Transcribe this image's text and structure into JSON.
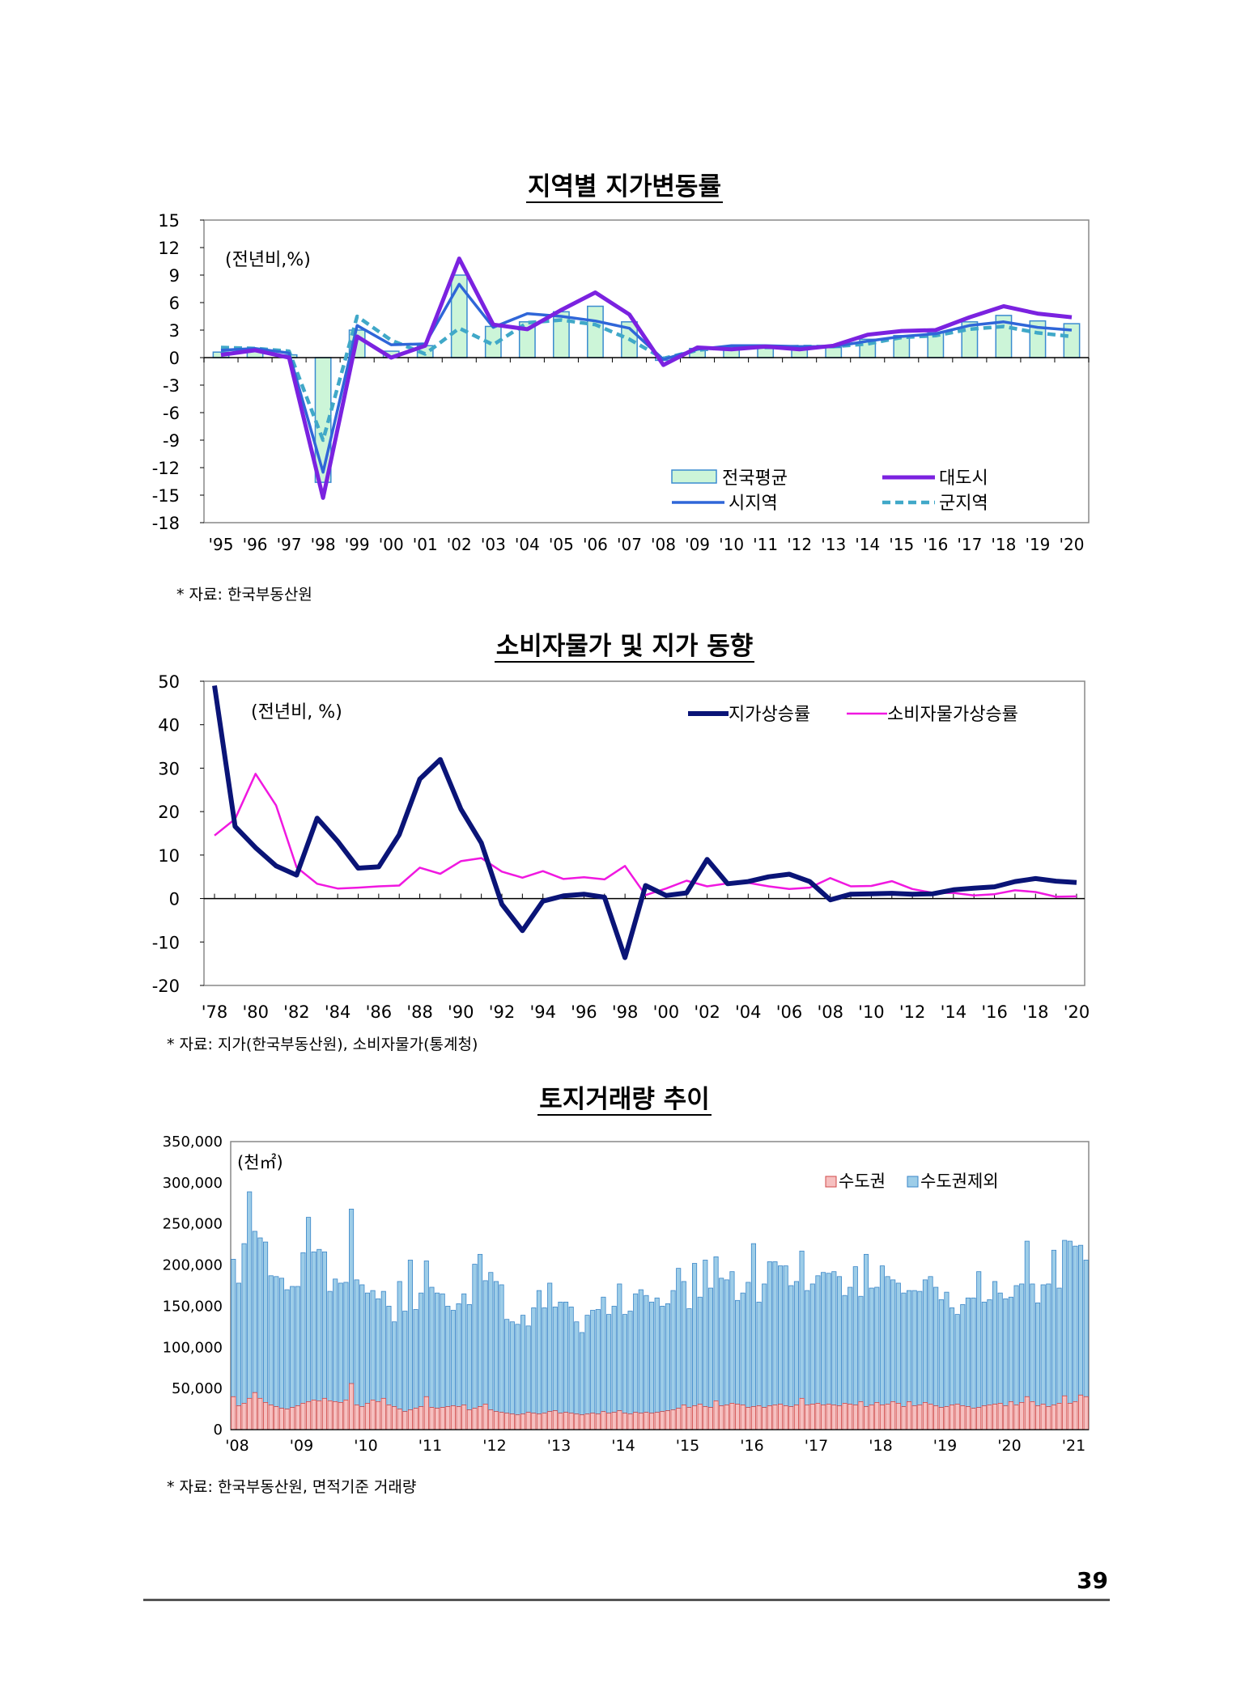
{
  "page_number": "39",
  "colors": {
    "bar_fill": "#ccf5d8",
    "bar_stroke": "#3a8bd0",
    "metro": "#7b22e0",
    "city": "#2f66d8",
    "county": "#40a8c8",
    "land": "#0a1477",
    "cpi": "#f018e0",
    "metro_area": "#f6c0c0",
    "non_metro": "#9dcde8"
  },
  "charts": [
    {
      "id": "regional",
      "title": "지역별 지가변동률",
      "unit_note": "(전년비,%)",
      "source": "* 자료: 한국부동산원",
      "legend": {
        "national": "전국평균",
        "metro": "대도시",
        "city": "시지역",
        "county": "군지역"
      }
    },
    {
      "id": "cpi",
      "title": "소비자물가 및 지가 동향",
      "unit_note": "(전년비, %)",
      "source": "* 자료: 지가(한국부동산원), 소비자물가(통계청)",
      "legend": {
        "land": "지가상승률",
        "cpi": "소비자물가상승률"
      }
    },
    {
      "id": "volume",
      "title": "토지거래량 추이",
      "unit_note": "(천㎡)",
      "source": "* 자료: 한국부동산원, 면적기준 거래량",
      "legend": {
        "metro_area": "수도권",
        "non_metro": "수도권제외"
      }
    }
  ],
  "chart_data": [
    {
      "type": "bar+line",
      "title": "지역별 지가변동률",
      "ylim": [
        -18,
        15
      ],
      "yticks": [
        15,
        12,
        9,
        6,
        3,
        0,
        -3,
        -6,
        -9,
        -12,
        -15,
        -18
      ],
      "categories": [
        "'95",
        "'96",
        "'97",
        "'98",
        "'99",
        "'00",
        "'01",
        "'02",
        "'03",
        "'04",
        "'05",
        "'06",
        "'07",
        "'08",
        "'09",
        "'10",
        "'11",
        "'12",
        "'13",
        "'14",
        "'15",
        "'16",
        "'17",
        "'18",
        "'19",
        "'20"
      ],
      "series": [
        {
          "name": "전국평균",
          "kind": "bar",
          "values": [
            0.6,
            0.9,
            0.3,
            -13.6,
            3.0,
            0.7,
            1.3,
            9.0,
            3.4,
            3.9,
            5.0,
            5.6,
            3.9,
            -0.3,
            1.0,
            1.1,
            1.2,
            1.0,
            1.1,
            2.0,
            2.4,
            2.7,
            3.9,
            4.6,
            4.0,
            3.7
          ]
        },
        {
          "name": "대도시",
          "kind": "line",
          "values": [
            0.3,
            0.8,
            0.0,
            -15.3,
            2.3,
            0.0,
            1.3,
            10.8,
            3.6,
            3.1,
            5.2,
            7.1,
            4.7,
            -0.8,
            1.1,
            0.9,
            1.2,
            0.9,
            1.3,
            2.5,
            2.9,
            3.0,
            4.4,
            5.6,
            4.8,
            4.4
          ]
        },
        {
          "name": "시지역",
          "kind": "line",
          "values": [
            0.8,
            1.0,
            0.5,
            -12.5,
            3.5,
            1.4,
            1.5,
            8.0,
            3.3,
            4.8,
            4.5,
            4.0,
            3.2,
            -0.2,
            0.9,
            1.3,
            1.3,
            1.2,
            1.2,
            1.8,
            2.3,
            2.6,
            3.5,
            3.9,
            3.3,
            3.0
          ]
        },
        {
          "name": "군지역",
          "kind": "line",
          "values": [
            1.1,
            1.0,
            0.7,
            -9.0,
            4.5,
            1.9,
            0.4,
            3.2,
            1.4,
            3.8,
            4.1,
            3.6,
            2.0,
            -0.1,
            0.8,
            1.2,
            1.1,
            1.2,
            1.2,
            1.5,
            2.2,
            2.4,
            3.1,
            3.4,
            2.7,
            2.3
          ]
        }
      ]
    },
    {
      "type": "line",
      "title": "소비자물가 및 지가 동향",
      "ylim": [
        -20,
        50
      ],
      "yticks": [
        50,
        40,
        30,
        20,
        10,
        0,
        -10,
        -20
      ],
      "x": [
        1978,
        1979,
        1980,
        1981,
        1982,
        1983,
        1984,
        1985,
        1986,
        1987,
        1988,
        1989,
        1990,
        1991,
        1992,
        1993,
        1994,
        1995,
        1996,
        1997,
        1998,
        1999,
        2000,
        2001,
        2002,
        2003,
        2004,
        2005,
        2006,
        2007,
        2008,
        2009,
        2010,
        2011,
        2012,
        2013,
        2014,
        2015,
        2016,
        2017,
        2018,
        2019,
        2020
      ],
      "x_tick_labels": [
        "'78",
        "'80",
        "'82",
        "'84",
        "'86",
        "'88",
        "'90",
        "'92",
        "'94",
        "'96",
        "'98",
        "'00",
        "'02",
        "'04",
        "'06",
        "'08",
        "'10",
        "'12",
        "'14",
        "'16",
        "'18",
        "'20"
      ],
      "series": [
        {
          "name": "지가상승률",
          "values": [
            49.0,
            16.6,
            11.7,
            7.5,
            5.4,
            18.5,
            13.2,
            7.0,
            7.3,
            14.7,
            27.5,
            32.0,
            20.6,
            12.8,
            -1.3,
            -7.4,
            -0.6,
            0.6,
            1.0,
            0.3,
            -13.6,
            3.0,
            0.7,
            1.3,
            9.0,
            3.4,
            3.9,
            5.0,
            5.6,
            3.9,
            -0.3,
            1.0,
            1.1,
            1.2,
            1.0,
            1.1,
            2.0,
            2.4,
            2.7,
            3.9,
            4.6,
            4.0,
            3.7
          ]
        },
        {
          "name": "소비자물가상승률",
          "values": [
            14.5,
            18.3,
            28.7,
            21.4,
            7.2,
            3.4,
            2.3,
            2.5,
            2.8,
            3.0,
            7.1,
            5.7,
            8.6,
            9.3,
            6.2,
            4.8,
            6.3,
            4.5,
            4.9,
            4.4,
            7.5,
            0.8,
            2.3,
            4.1,
            2.8,
            3.5,
            3.6,
            2.8,
            2.2,
            2.5,
            4.7,
            2.8,
            2.9,
            4.0,
            2.2,
            1.3,
            1.3,
            0.7,
            1.0,
            1.9,
            1.5,
            0.4,
            0.5
          ]
        }
      ]
    },
    {
      "type": "bar",
      "stacked": true,
      "title": "토지거래량 추이",
      "ylim": [
        0,
        350000
      ],
      "yticks": [
        "350,000",
        "300,000",
        "250,000",
        "200,000",
        "150,000",
        "100,000",
        "50,000",
        "0"
      ],
      "x_tick_labels": [
        "'08",
        "'09",
        "'10",
        "'11",
        "'12",
        "'13",
        "'14",
        "'15",
        "'16",
        "'17",
        "'18",
        "'19",
        "'20",
        "'21"
      ],
      "months": 160,
      "series": [
        {
          "name": "수도권",
          "values": [
            40000,
            29000,
            32000,
            38000,
            45000,
            38000,
            33000,
            30000,
            28000,
            26000,
            25000,
            27000,
            29000,
            32000,
            34000,
            36000,
            35000,
            38000,
            35000,
            34000,
            33000,
            36000,
            56000,
            30000,
            28000,
            32000,
            36000,
            34000,
            38000,
            30000,
            28000,
            25000,
            22000,
            24000,
            26000,
            28000,
            40000,
            27000,
            26000,
            27000,
            28000,
            29000,
            28000,
            30000,
            24000,
            26000,
            28000,
            31000,
            24000,
            22000,
            21000,
            20000,
            19000,
            18000,
            19000,
            21000,
            20000,
            19000,
            20000,
            22000,
            23000,
            20000,
            21000,
            20000,
            19000,
            18000,
            19000,
            20000,
            19000,
            22000,
            20000,
            21000,
            23000,
            20000,
            19000,
            21000,
            20000,
            21000,
            20000,
            21000,
            22000,
            23000,
            24000,
            26000,
            30000,
            27000,
            29000,
            31000,
            28000,
            27000,
            35000,
            29000,
            30000,
            32000,
            31000,
            30000,
            27000,
            28000,
            29000,
            27000,
            29000,
            30000,
            31000,
            29000,
            28000,
            30000,
            38000,
            30000,
            31000,
            32000,
            30000,
            31000,
            30000,
            29000,
            32000,
            31000,
            30000,
            34000,
            28000,
            30000,
            33000,
            30000,
            31000,
            34000,
            32000,
            28000,
            34000,
            29000,
            30000,
            33000,
            31000,
            29000,
            27000,
            28000,
            30000,
            31000,
            29000,
            28000,
            26000,
            27000,
            29000,
            30000,
            31000,
            32000,
            29000,
            34000,
            30000,
            33000,
            40000,
            34000,
            29000,
            31000,
            28000,
            30000,
            32000,
            41000,
            32000,
            34000,
            42000,
            40000
          ]
        },
        {
          "name": "수도권제외",
          "values": [
            167000,
            149000,
            194000,
            251000,
            196000,
            195000,
            195000,
            157000,
            158000,
            158000,
            145000,
            147000,
            145000,
            183000,
            224000,
            180000,
            184000,
            178000,
            133000,
            149000,
            145000,
            143000,
            212000,
            152000,
            148000,
            134000,
            133000,
            125000,
            130000,
            120000,
            103000,
            155000,
            122000,
            182000,
            120000,
            138000,
            165000,
            146000,
            140000,
            138000,
            122000,
            116000,
            125000,
            135000,
            128000,
            175000,
            185000,
            150000,
            167000,
            158000,
            155000,
            114000,
            112000,
            110000,
            120000,
            105000,
            128000,
            150000,
            128000,
            156000,
            126000,
            135000,
            134000,
            129000,
            112000,
            100000,
            120000,
            125000,
            127000,
            139000,
            120000,
            129000,
            154000,
            120000,
            125000,
            144000,
            150000,
            142000,
            135000,
            139000,
            128000,
            130000,
            145000,
            170000,
            150000,
            120000,
            173000,
            130000,
            178000,
            145000,
            175000,
            155000,
            152000,
            160000,
            126000,
            136000,
            152000,
            198000,
            126000,
            150000,
            175000,
            174000,
            168000,
            170000,
            147000,
            150000,
            179000,
            139000,
            146000,
            155000,
            161000,
            159000,
            162000,
            157000,
            131000,
            142000,
            168000,
            128000,
            185000,
            142000,
            140000,
            169000,
            155000,
            148000,
            146000,
            138000,
            135000,
            140000,
            138000,
            149000,
            155000,
            144000,
            131000,
            139000,
            118000,
            109000,
            123000,
            132000,
            134000,
            165000,
            126000,
            128000,
            149000,
            134000,
            130000,
            127000,
            145000,
            144000,
            189000,
            143000,
            125000,
            145000,
            149000,
            188000,
            140000,
            189000,
            197000,
            189000,
            182000,
            166000
          ]
        }
      ]
    }
  ]
}
